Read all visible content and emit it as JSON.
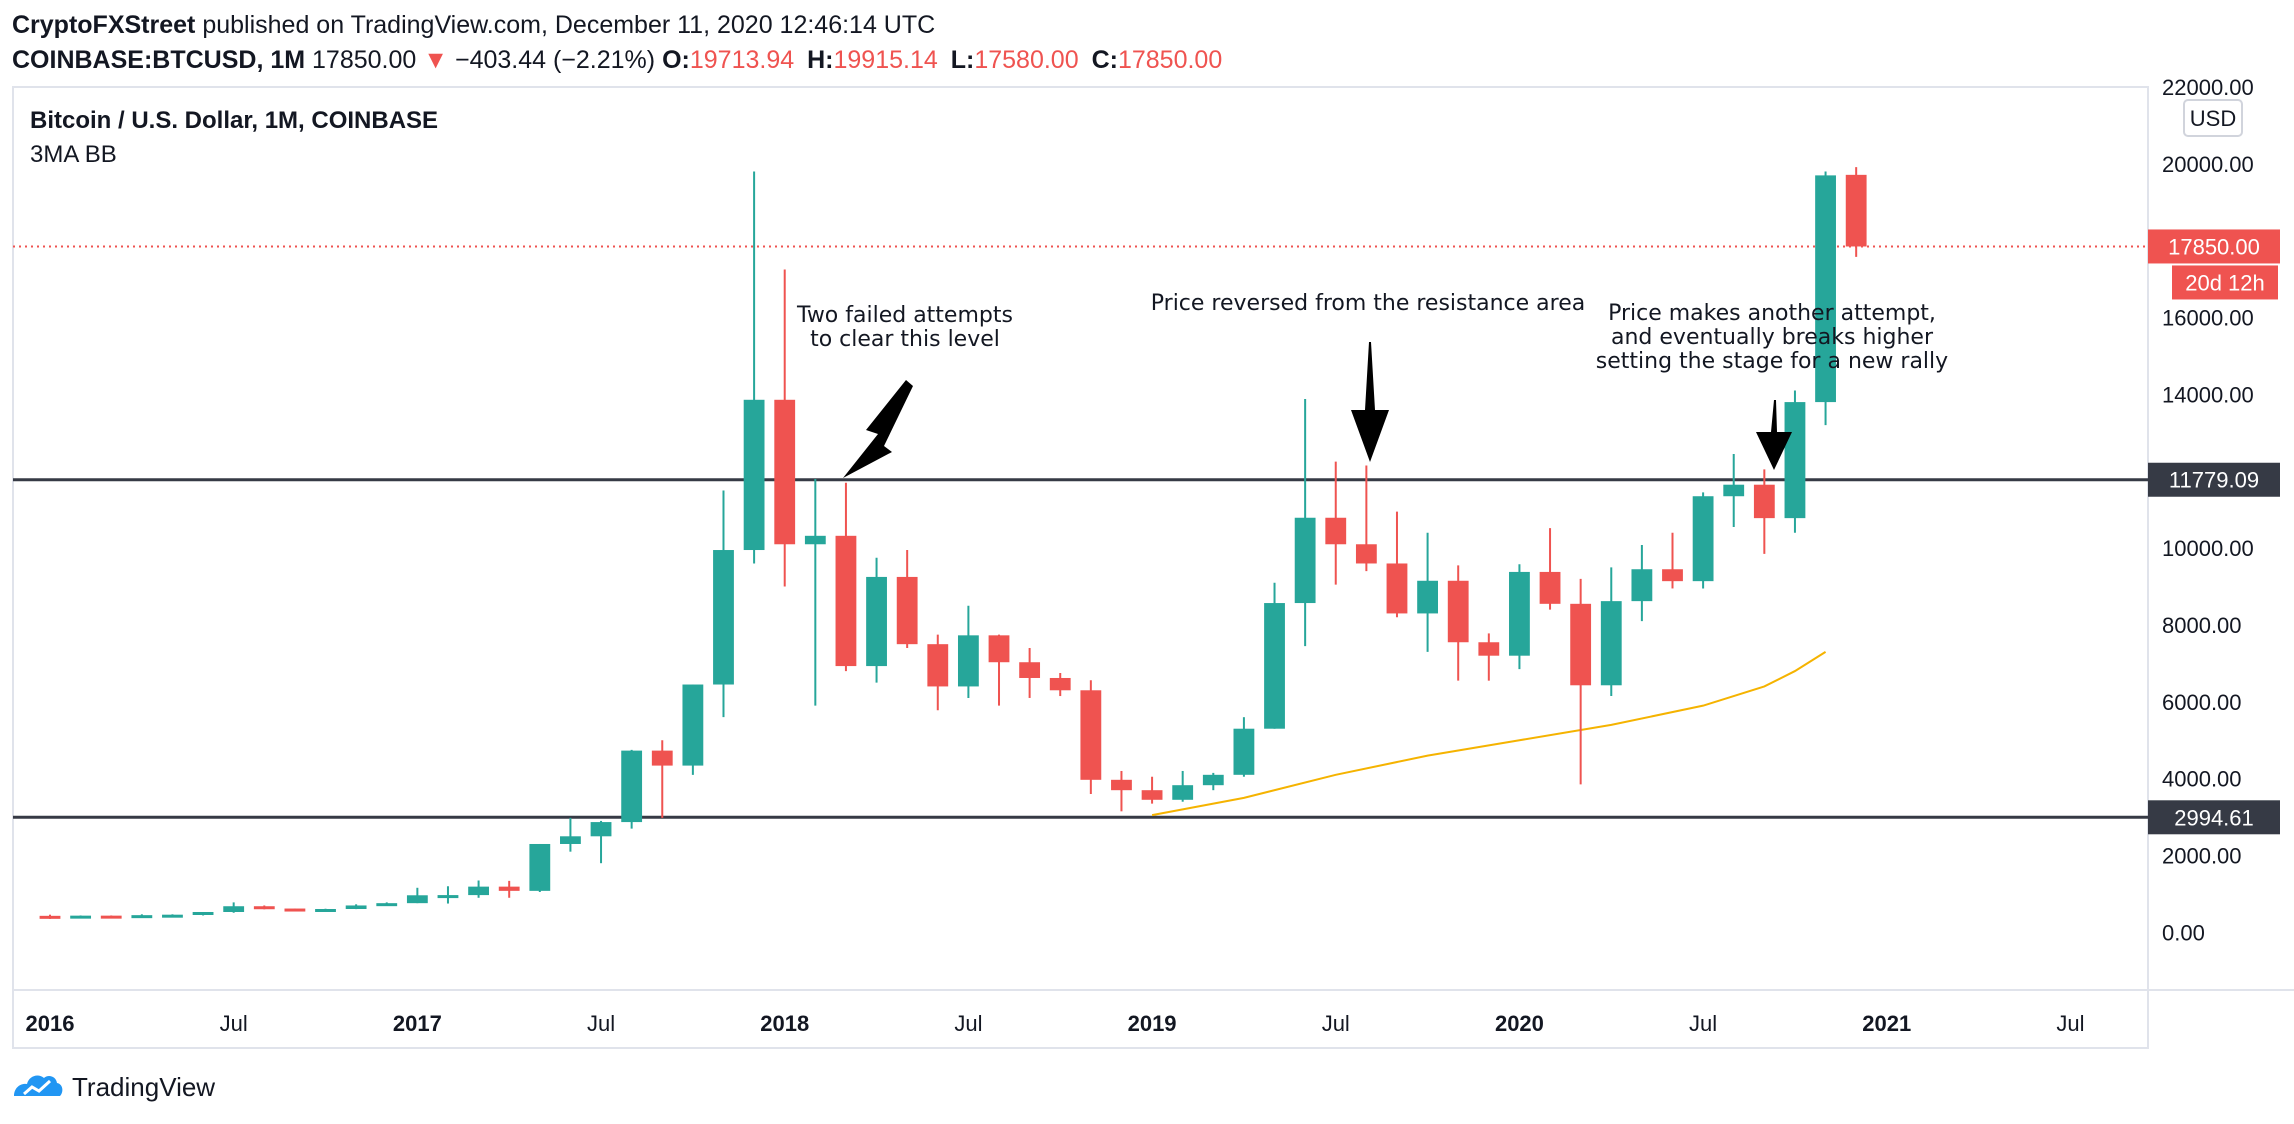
{
  "header": {
    "author": "CryptoFXStreet",
    "published": "published on TradingView.com, December 11, 2020 12:46:14 UTC",
    "symbol": "COINBASE:BTCUSD, 1M",
    "last": "17850.00",
    "arrow": "▼",
    "change": "−403.44 (−2.21%)",
    "o_label": "O:",
    "o_value": "19713.94",
    "h_label": "H:",
    "h_value": "19915.14",
    "l_label": "L:",
    "l_value": "17580.00",
    "c_label": "C:",
    "c_value": "17850.00"
  },
  "legend": {
    "title": "Bitcoin / U.S. Dollar, 1M, COINBASE",
    "indicator": "3MA BB"
  },
  "footer": {
    "brand": "TradingView"
  },
  "colors": {
    "up": "#26a69a",
    "down": "#ef5350",
    "ma": "#f5b300",
    "level_line": "#363a45",
    "price_line": "#ef5350"
  },
  "chart_data": {
    "type": "candlestick",
    "currency": "USD",
    "ylim": [
      -1500,
      22000
    ],
    "y_ticks": [
      "22000.00",
      "20000.00",
      "16000.00",
      "14000.00",
      "10000.00",
      "8000.00",
      "6000.00",
      "4000.00",
      "2000.00",
      "0.00"
    ],
    "x_ticks": [
      {
        "label": "2016",
        "month": 0,
        "bold": true
      },
      {
        "label": "Jul",
        "month": 6,
        "bold": false
      },
      {
        "label": "2017",
        "month": 12,
        "bold": true
      },
      {
        "label": "Jul",
        "month": 18,
        "bold": false
      },
      {
        "label": "2018",
        "month": 24,
        "bold": true
      },
      {
        "label": "Jul",
        "month": 30,
        "bold": false
      },
      {
        "label": "2019",
        "month": 36,
        "bold": true
      },
      {
        "label": "Jul",
        "month": 42,
        "bold": false
      },
      {
        "label": "2020",
        "month": 48,
        "bold": true
      },
      {
        "label": "Jul",
        "month": 54,
        "bold": false
      },
      {
        "label": "2021",
        "month": 60,
        "bold": true
      },
      {
        "label": "Jul",
        "month": 66,
        "bold": false
      }
    ],
    "x_month_range": [
      0,
      68.5
    ],
    "candles": [
      {
        "o": 430,
        "h": 460,
        "l": 350,
        "c": 370
      },
      {
        "o": 370,
        "h": 440,
        "l": 365,
        "c": 435
      },
      {
        "o": 435,
        "h": 440,
        "l": 400,
        "c": 415
      },
      {
        "o": 415,
        "h": 470,
        "l": 410,
        "c": 448
      },
      {
        "o": 448,
        "h": 470,
        "l": 430,
        "c": 460
      },
      {
        "o": 460,
        "h": 530,
        "l": 440,
        "c": 530
      },
      {
        "o": 530,
        "h": 780,
        "l": 510,
        "c": 680
      },
      {
        "o": 680,
        "h": 700,
        "l": 600,
        "c": 620
      },
      {
        "o": 620,
        "h": 620,
        "l": 560,
        "c": 575
      },
      {
        "o": 575,
        "h": 615,
        "l": 560,
        "c": 608
      },
      {
        "o": 608,
        "h": 730,
        "l": 605,
        "c": 700
      },
      {
        "o": 700,
        "h": 780,
        "l": 700,
        "c": 760
      },
      {
        "o": 760,
        "h": 1160,
        "l": 760,
        "c": 965
      },
      {
        "o": 965,
        "h": 1200,
        "l": 750,
        "c": 970
      },
      {
        "o": 970,
        "h": 1350,
        "l": 900,
        "c": 1190
      },
      {
        "o": 1190,
        "h": 1340,
        "l": 900,
        "c": 1080
      },
      {
        "o": 1080,
        "h": 2300,
        "l": 1050,
        "c": 2300
      },
      {
        "o": 2300,
        "h": 2980,
        "l": 2100,
        "c": 2500
      },
      {
        "o": 2500,
        "h": 2900,
        "l": 1800,
        "c": 2870
      },
      {
        "o": 2870,
        "h": 4750,
        "l": 2700,
        "c": 4730
      },
      {
        "o": 4730,
        "h": 5000,
        "l": 2980,
        "c": 4340
      },
      {
        "o": 4340,
        "h": 6450,
        "l": 4100,
        "c": 6450
      },
      {
        "o": 6450,
        "h": 11500,
        "l": 5600,
        "c": 9950
      },
      {
        "o": 9950,
        "h": 19800,
        "l": 9600,
        "c": 13860
      },
      {
        "o": 13860,
        "h": 17250,
        "l": 9000,
        "c": 10100
      },
      {
        "o": 10100,
        "h": 11800,
        "l": 5900,
        "c": 10320
      },
      {
        "o": 10320,
        "h": 11700,
        "l": 6800,
        "c": 6930
      },
      {
        "o": 6930,
        "h": 9750,
        "l": 6500,
        "c": 9250
      },
      {
        "o": 9250,
        "h": 9950,
        "l": 7400,
        "c": 7500
      },
      {
        "o": 7500,
        "h": 7750,
        "l": 5780,
        "c": 6400
      },
      {
        "o": 6400,
        "h": 8500,
        "l": 6100,
        "c": 7730
      },
      {
        "o": 7730,
        "h": 7750,
        "l": 5900,
        "c": 7030
      },
      {
        "o": 7030,
        "h": 7400,
        "l": 6100,
        "c": 6620
      },
      {
        "o": 6620,
        "h": 6750,
        "l": 6150,
        "c": 6300
      },
      {
        "o": 6300,
        "h": 6560,
        "l": 3600,
        "c": 3970
      },
      {
        "o": 3970,
        "h": 4200,
        "l": 3150,
        "c": 3700
      },
      {
        "o": 3700,
        "h": 4050,
        "l": 3350,
        "c": 3450
      },
      {
        "o": 3450,
        "h": 4200,
        "l": 3400,
        "c": 3830
      },
      {
        "o": 3830,
        "h": 4150,
        "l": 3700,
        "c": 4100
      },
      {
        "o": 4100,
        "h": 5600,
        "l": 4050,
        "c": 5300
      },
      {
        "o": 5300,
        "h": 9100,
        "l": 5300,
        "c": 8570
      },
      {
        "o": 8570,
        "h": 13880,
        "l": 7450,
        "c": 10790
      },
      {
        "o": 10790,
        "h": 12250,
        "l": 9050,
        "c": 10100
      },
      {
        "o": 10100,
        "h": 12150,
        "l": 9400,
        "c": 9600
      },
      {
        "o": 9600,
        "h": 10950,
        "l": 8200,
        "c": 8300
      },
      {
        "o": 8300,
        "h": 10400,
        "l": 7300,
        "c": 9150
      },
      {
        "o": 9150,
        "h": 9550,
        "l": 6550,
        "c": 7550
      },
      {
        "o": 7550,
        "h": 7780,
        "l": 6550,
        "c": 7200
      },
      {
        "o": 7200,
        "h": 9580,
        "l": 6850,
        "c": 9380
      },
      {
        "o": 9380,
        "h": 10520,
        "l": 8400,
        "c": 8550
      },
      {
        "o": 8550,
        "h": 9200,
        "l": 3850,
        "c": 6430
      },
      {
        "o": 6430,
        "h": 9500,
        "l": 6150,
        "c": 8620
      },
      {
        "o": 8620,
        "h": 10080,
        "l": 8100,
        "c": 9450
      },
      {
        "o": 9450,
        "h": 10400,
        "l": 8950,
        "c": 9140
      },
      {
        "o": 9140,
        "h": 11450,
        "l": 8950,
        "c": 11350
      },
      {
        "o": 11350,
        "h": 12450,
        "l": 10550,
        "c": 11650
      },
      {
        "o": 11650,
        "h": 12050,
        "l": 9850,
        "c": 10780
      },
      {
        "o": 10780,
        "h": 14100,
        "l": 10400,
        "c": 13800
      },
      {
        "o": 13800,
        "h": 19800,
        "l": 13200,
        "c": 19700
      },
      {
        "o": 19713.94,
        "h": 19915.14,
        "l": 17580,
        "c": 17850
      }
    ],
    "ma_3": [
      {
        "m": 36,
        "v": 3050
      },
      {
        "m": 39,
        "v": 3500
      },
      {
        "m": 42,
        "v": 4100
      },
      {
        "m": 45,
        "v": 4600
      },
      {
        "m": 48,
        "v": 5000
      },
      {
        "m": 51,
        "v": 5400
      },
      {
        "m": 54,
        "v": 5900
      },
      {
        "m": 56,
        "v": 6400
      },
      {
        "m": 57,
        "v": 6800
      },
      {
        "m": 58,
        "v": 7300
      }
    ],
    "levels": [
      {
        "value": 11779.09,
        "label": "11779.09"
      },
      {
        "value": 2994.61,
        "label": "2994.61"
      }
    ],
    "last_price": {
      "value": 17850,
      "label": "17850.00",
      "countdown": "20d 12h"
    },
    "annotations": [
      {
        "lines": [
          "Two failed attempts",
          "to clear this level"
        ]
      },
      {
        "lines": [
          "Price reversed from the resistance area"
        ]
      },
      {
        "lines": [
          "Price makes another attempt,",
          "and eventually breaks higher",
          "setting the stage for a new rally"
        ]
      }
    ]
  }
}
